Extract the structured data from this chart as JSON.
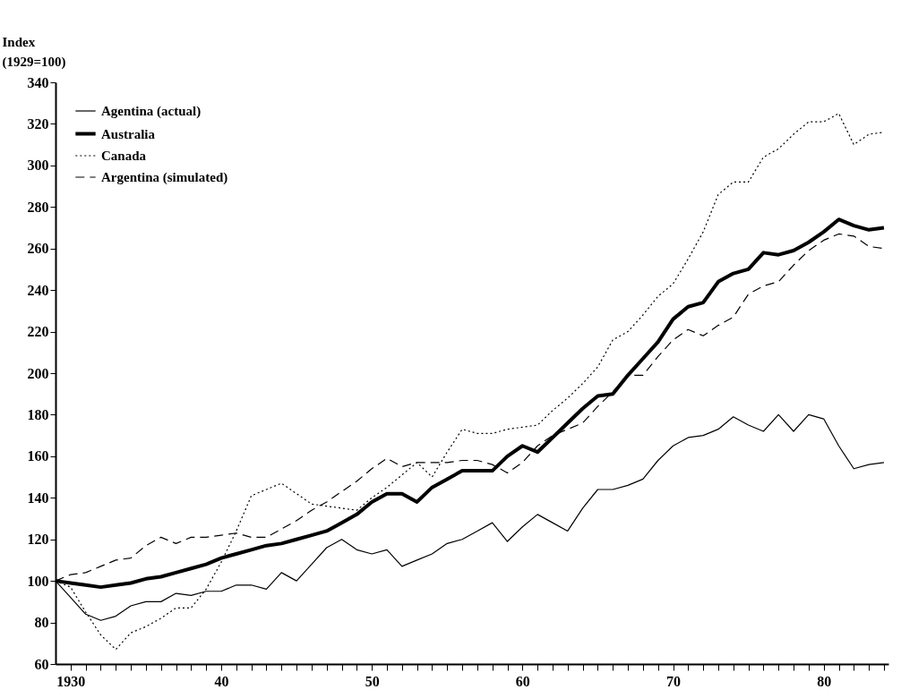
{
  "chart_data": {
    "type": "line",
    "ylabel": "Index\n(1929=100)",
    "x": [
      1929,
      1930,
      1931,
      1932,
      1933,
      1934,
      1935,
      1936,
      1937,
      1938,
      1939,
      1940,
      1941,
      1942,
      1943,
      1944,
      1945,
      1946,
      1947,
      1948,
      1949,
      1950,
      1951,
      1952,
      1953,
      1954,
      1955,
      1956,
      1957,
      1958,
      1959,
      1960,
      1961,
      1962,
      1963,
      1964,
      1965,
      1966,
      1967,
      1968,
      1969,
      1970,
      1971,
      1972,
      1973,
      1974,
      1975,
      1976,
      1977,
      1978,
      1979,
      1980,
      1981,
      1982,
      1983,
      1984
    ],
    "series": [
      {
        "name": "Agentina (actual)",
        "color": "#000000",
        "line_style": "solid",
        "values": [
          100,
          92,
          84,
          81,
          83,
          88,
          90,
          90,
          94,
          93,
          95,
          95,
          98,
          98,
          96,
          104,
          100,
          108,
          116,
          120,
          115,
          113,
          115,
          107,
          110,
          113,
          118,
          120,
          124,
          128,
          119,
          126,
          132,
          128,
          124,
          135,
          144,
          144,
          146,
          149,
          158,
          165,
          169,
          170,
          173,
          179,
          175,
          172,
          180,
          172,
          180,
          178,
          165,
          154,
          156,
          157
        ]
      },
      {
        "name": "Australia",
        "color": "#000000",
        "line_style": "solid",
        "values": [
          100,
          99,
          98,
          97,
          98,
          99,
          101,
          102,
          104,
          106,
          108,
          111,
          113,
          115,
          117,
          118,
          120,
          122,
          124,
          128,
          132,
          138,
          142,
          142,
          138,
          145,
          149,
          153,
          153,
          153,
          160,
          165,
          162,
          169,
          176,
          183,
          189,
          190,
          199,
          207,
          215,
          226,
          232,
          234,
          244,
          248,
          250,
          258,
          257,
          259,
          263,
          268,
          274,
          271,
          269,
          270
        ]
      },
      {
        "name": "Canada",
        "color": "#000000",
        "line_style": "dotted",
        "values": [
          100,
          97,
          85,
          74,
          67,
          75,
          78,
          82,
          87,
          87,
          96,
          109,
          124,
          141,
          144,
          147,
          142,
          137,
          136,
          135,
          134,
          140,
          145,
          151,
          157,
          150,
          162,
          173,
          171,
          171,
          173,
          174,
          175,
          182,
          188,
          195,
          203,
          216,
          220,
          228,
          237,
          243,
          255,
          268,
          286,
          292,
          292,
          304,
          308,
          315,
          321,
          321,
          325,
          310,
          315,
          316
        ]
      },
      {
        "name": "Argentina (simulated)",
        "color": "#000000",
        "line_style": "dashed",
        "values": [
          100,
          103,
          104,
          107,
          110,
          111,
          117,
          121,
          118,
          121,
          121,
          122,
          123,
          121,
          121,
          125,
          129,
          134,
          138,
          143,
          148,
          154,
          159,
          155,
          157,
          157,
          157,
          158,
          158,
          156,
          152,
          157,
          165,
          170,
          173,
          176,
          184,
          191,
          199,
          199,
          208,
          216,
          221,
          218,
          223,
          227,
          238,
          242,
          244,
          252,
          259,
          264,
          267,
          266,
          261,
          260
        ]
      }
    ],
    "xlim": [
      1929,
      1984.3
    ],
    "xticks": [
      {
        "value": 1930,
        "label": "1930"
      },
      {
        "value": 1931,
        "label": null
      },
      {
        "value": 1932,
        "label": null
      },
      {
        "value": 1933,
        "label": null
      },
      {
        "value": 1934,
        "label": null
      },
      {
        "value": 1935,
        "label": null
      },
      {
        "value": 1936,
        "label": null
      },
      {
        "value": 1937,
        "label": null
      },
      {
        "value": 1938,
        "label": null
      },
      {
        "value": 1939,
        "label": null
      },
      {
        "value": 1940,
        "label": "40"
      },
      {
        "value": 1941,
        "label": null
      },
      {
        "value": 1942,
        "label": null
      },
      {
        "value": 1943,
        "label": null
      },
      {
        "value": 1944,
        "label": null
      },
      {
        "value": 1945,
        "label": null
      },
      {
        "value": 1946,
        "label": null
      },
      {
        "value": 1947,
        "label": null
      },
      {
        "value": 1948,
        "label": null
      },
      {
        "value": 1949,
        "label": null
      },
      {
        "value": 1950,
        "label": "50"
      },
      {
        "value": 1951,
        "label": null
      },
      {
        "value": 1952,
        "label": null
      },
      {
        "value": 1953,
        "label": null
      },
      {
        "value": 1954,
        "label": null
      },
      {
        "value": 1955,
        "label": null
      },
      {
        "value": 1956,
        "label": null
      },
      {
        "value": 1957,
        "label": null
      },
      {
        "value": 1958,
        "label": null
      },
      {
        "value": 1959,
        "label": null
      },
      {
        "value": 1960,
        "label": "60"
      },
      {
        "value": 1961,
        "label": null
      },
      {
        "value": 1962,
        "label": null
      },
      {
        "value": 1963,
        "label": null
      },
      {
        "value": 1964,
        "label": null
      },
      {
        "value": 1965,
        "label": null
      },
      {
        "value": 1966,
        "label": null
      },
      {
        "value": 1967,
        "label": null
      },
      {
        "value": 1968,
        "label": null
      },
      {
        "value": 1969,
        "label": null
      },
      {
        "value": 1970,
        "label": "70"
      },
      {
        "value": 1971,
        "label": null
      },
      {
        "value": 1972,
        "label": null
      },
      {
        "value": 1973,
        "label": null
      },
      {
        "value": 1974,
        "label": null
      },
      {
        "value": 1975,
        "label": null
      },
      {
        "value": 1976,
        "label": null
      },
      {
        "value": 1977,
        "label": null
      },
      {
        "value": 1978,
        "label": null
      },
      {
        "value": 1979,
        "label": null
      },
      {
        "value": 1980,
        "label": "80"
      },
      {
        "value": 1981,
        "label": null
      },
      {
        "value": 1982,
        "label": null
      },
      {
        "value": 1983,
        "label": null
      },
      {
        "value": 1984,
        "label": null
      }
    ],
    "ylim": [
      60,
      340
    ],
    "yticks": [
      60,
      80,
      100,
      120,
      140,
      160,
      180,
      200,
      220,
      240,
      260,
      280,
      300,
      320,
      340
    ],
    "grid": false,
    "legend": "top left",
    "marker": "none"
  }
}
